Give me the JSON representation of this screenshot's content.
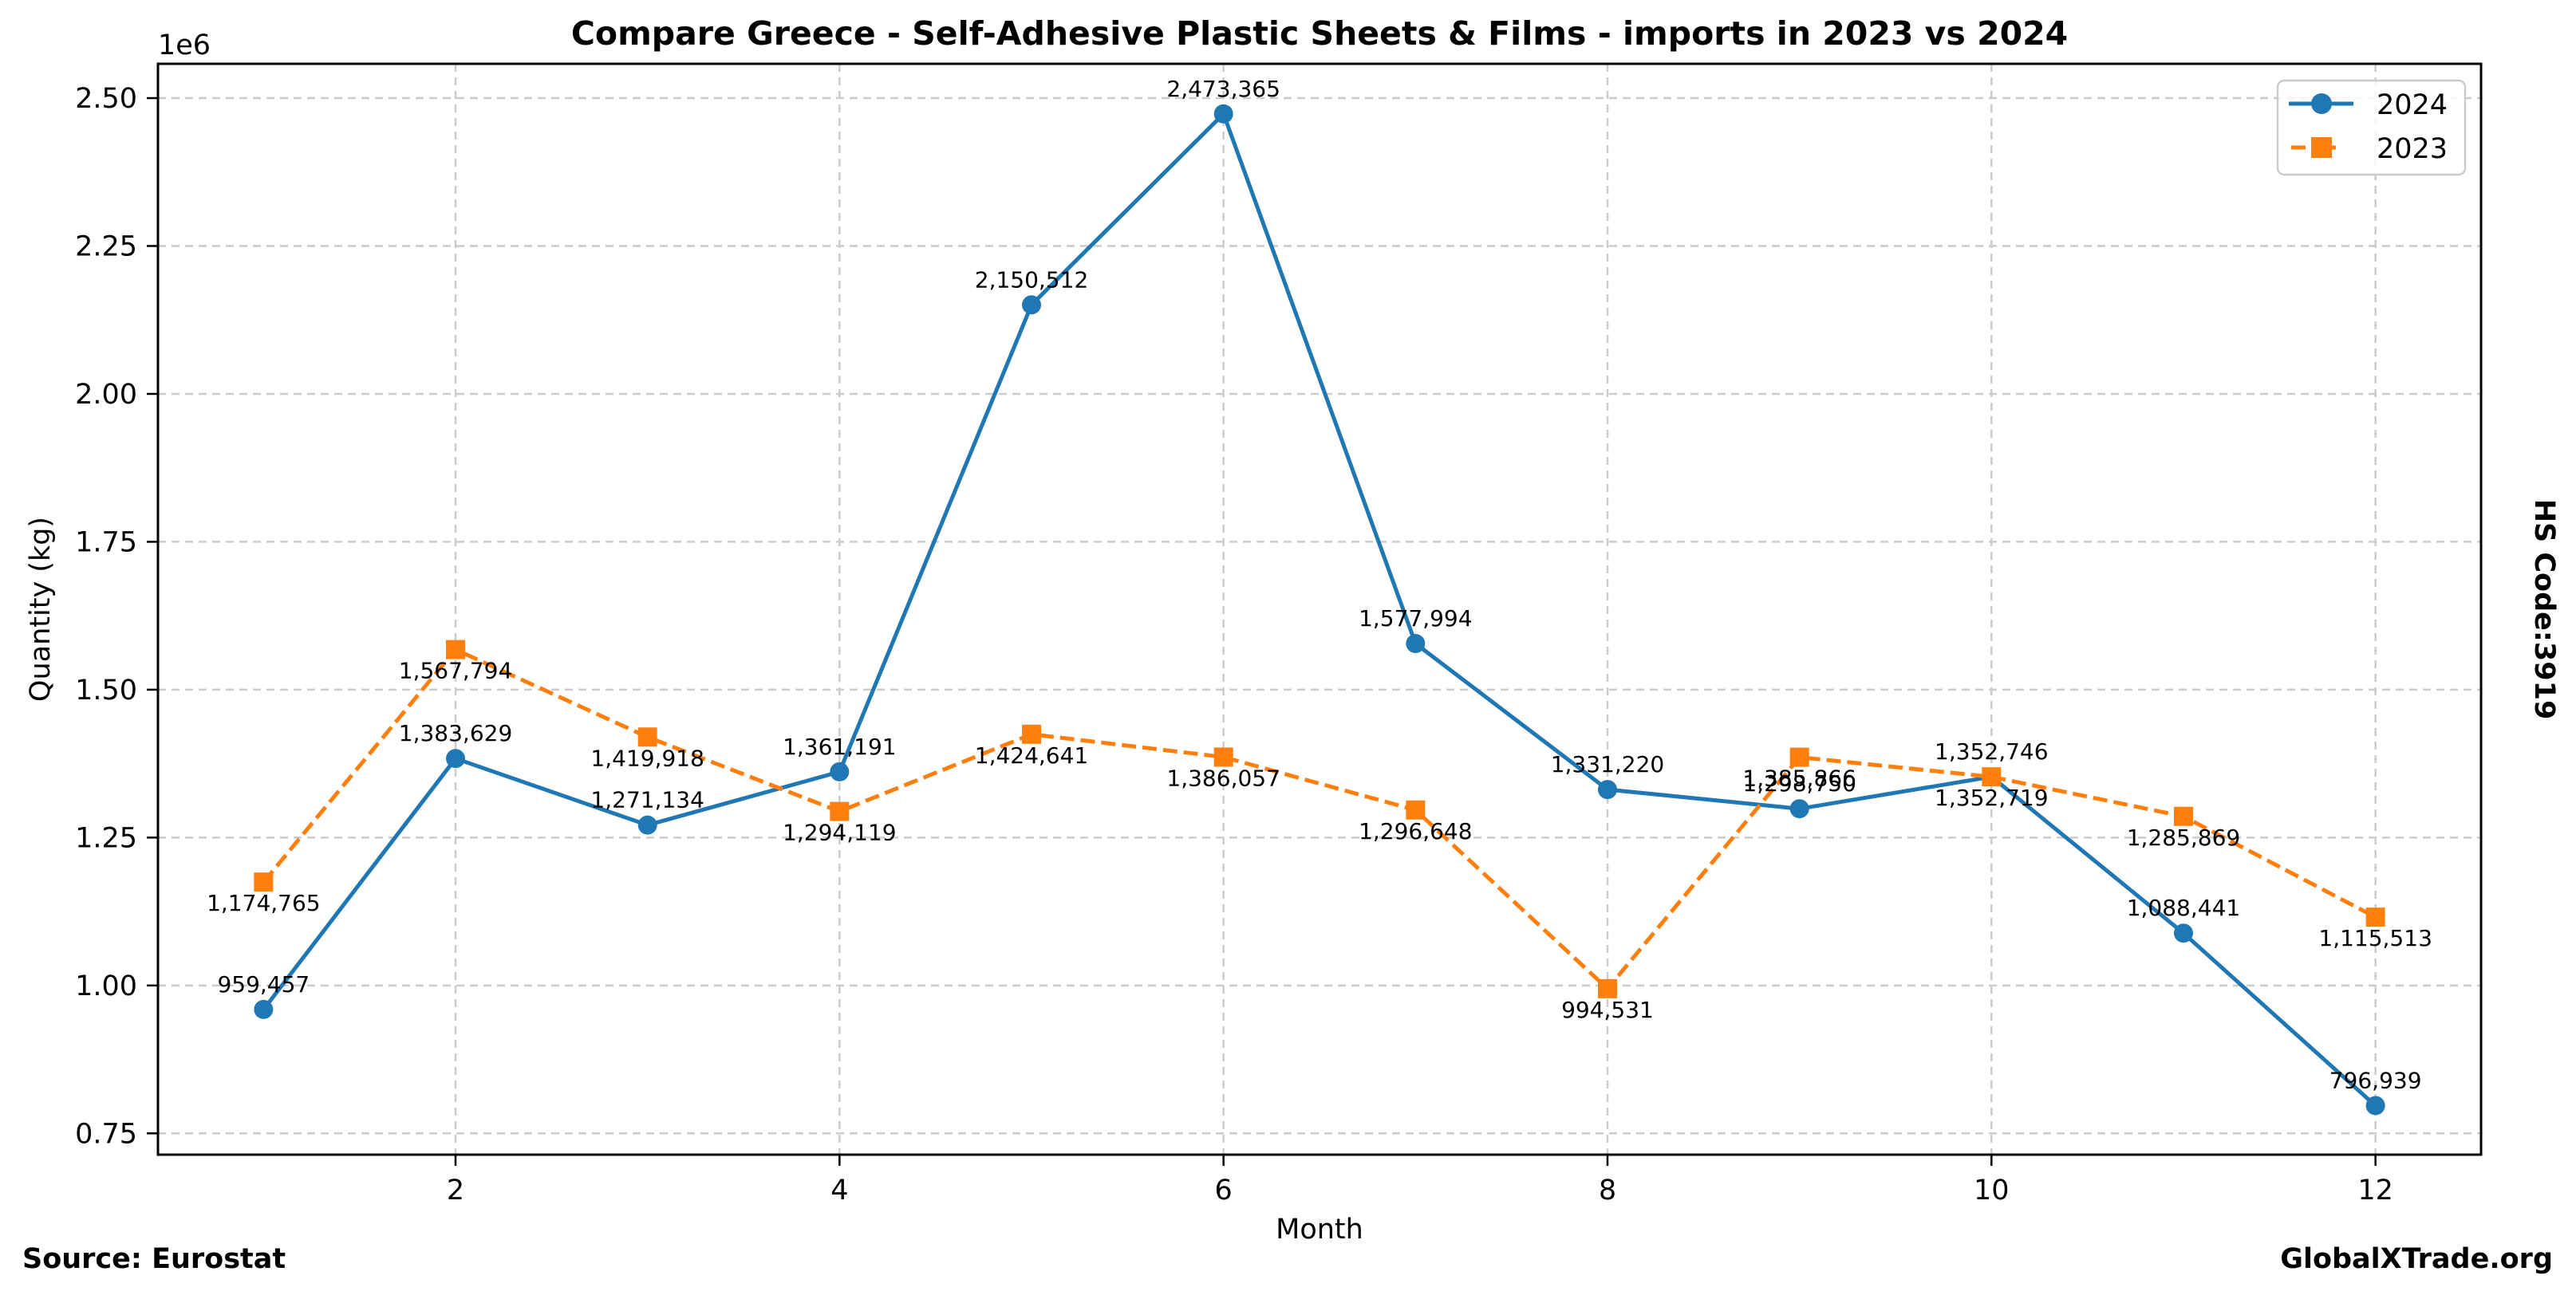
{
  "chart_data": {
    "type": "line",
    "title": "Compare Greece - Self-Adhesive Plastic Sheets & Films - imports in 2023 vs 2024",
    "xlabel": "Month",
    "ylabel": "Quantity (kg)",
    "y_scale_label": "1e6",
    "x": [
      1,
      2,
      3,
      4,
      5,
      6,
      7,
      8,
      9,
      10,
      11,
      12
    ],
    "xlim": [
      0.45,
      12.55
    ],
    "ylim": [
      714000,
      2558000
    ],
    "x_ticks": [
      2,
      4,
      6,
      8,
      10,
      12
    ],
    "x_tick_labels": [
      "2",
      "4",
      "6",
      "8",
      "10",
      "12"
    ],
    "y_ticks": [
      750000,
      1000000,
      1250000,
      1500000,
      1750000,
      2000000,
      2250000,
      2500000
    ],
    "y_tick_labels": [
      "0.75",
      "1.00",
      "1.25",
      "1.50",
      "1.75",
      "2.00",
      "2.25",
      "2.50"
    ],
    "grid": true,
    "legend_position": "top-right",
    "series": [
      {
        "name": "2024",
        "color": "#1f77b4",
        "marker": "circle",
        "line_style": "solid",
        "label_position": "above",
        "values": [
          959457,
          1383629,
          1271134,
          1361191,
          2150512,
          2473365,
          1577994,
          1331220,
          1298750,
          1352746,
          1088441,
          796939
        ],
        "labels": [
          "959,457",
          "1,383,629",
          "1,271,134",
          "1,361,191",
          "2,150,512",
          "2,473,365",
          "1,577,994",
          "1,331,220",
          "1,298,750",
          "1,352,746",
          "1,088,441",
          "796,939"
        ]
      },
      {
        "name": "2023",
        "color": "#ff7f0e",
        "marker": "square",
        "line_style": "dashed",
        "label_position": "below",
        "values": [
          1174765,
          1567794,
          1419918,
          1294119,
          1424641,
          1386057,
          1296648,
          994531,
          1385866,
          1352719,
          1285869,
          1115513
        ],
        "labels": [
          "1,174,765",
          "1,567,794",
          "1,419,918",
          "1,294,119",
          "1,424,641",
          "1,386,057",
          "1,296,648",
          "994,531",
          "1,385,866",
          "1,352,719",
          "1,285,869",
          "1,115,513"
        ]
      }
    ]
  },
  "footer": {
    "source": "Source: Eurostat",
    "brand": "GlobalXTrade.org"
  },
  "side_note": "HS Code:3919"
}
